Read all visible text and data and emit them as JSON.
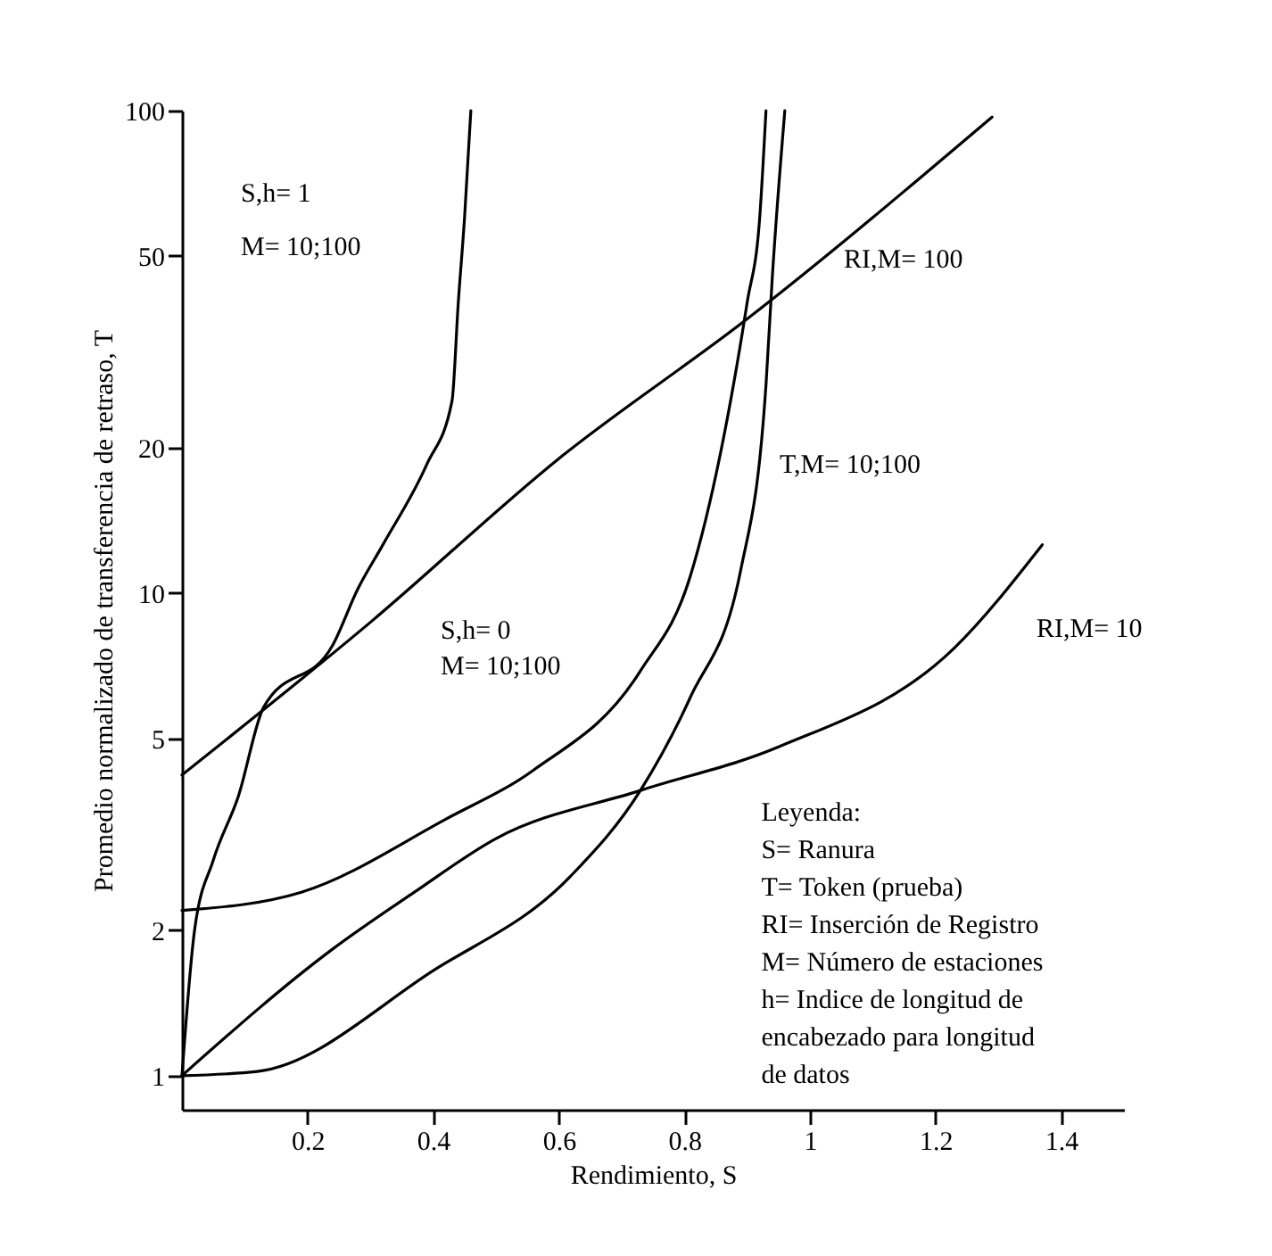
{
  "chart_data": {
    "type": "line",
    "xlabel": "Rendimiento, S",
    "ylabel": "Promedio normalizado de transferencia de retraso, T",
    "log": "y",
    "xlim": [
      0,
      1.5
    ],
    "ylim": [
      0.85,
      100
    ],
    "xticks": [
      0.2,
      0.4,
      0.6,
      0.8,
      1.0,
      1.2,
      1.4
    ],
    "yticks": [
      1,
      2,
      5,
      10,
      20,
      50,
      100
    ],
    "grid": false,
    "marker": "none",
    "line_style": "solid",
    "series": [
      {
        "color": "#000000",
        "x": [
          0,
          0.02,
          0.05,
          0.09,
          0.13,
          0.24,
          0.28,
          0.32,
          0.39,
          0.43,
          0.44,
          0.45,
          0.46
        ],
        "values": [
          1,
          2,
          2.8,
          3.8,
          5.8,
          7.8,
          10.2,
          12.6,
          18.5,
          25,
          40,
          60,
          100
        ]
      },
      {
        "color": "#000000",
        "x": [
          0,
          0.3,
          0.6,
          0.9,
          1.29
        ],
        "values": [
          4.2,
          8.7,
          19,
          37,
          97
        ]
      },
      {
        "color": "#000000",
        "x": [
          0,
          0.19,
          0.42,
          0.56,
          0.73,
          0.81,
          0.9,
          0.92,
          0.93
        ],
        "values": [
          2.2,
          2.4,
          3.4,
          4.3,
          6.9,
          10.9,
          40,
          60,
          100
        ]
      },
      {
        "color": "#000000",
        "x": [
          0,
          0.12,
          0.4,
          0.62,
          0.73,
          0.81,
          0.89,
          0.93,
          0.94,
          0.96
        ],
        "values": [
          1,
          1.02,
          1.65,
          2.6,
          3.9,
          6.1,
          11.2,
          27,
          45,
          100
        ]
      },
      {
        "color": "#000000",
        "x": [
          0,
          0.24,
          0.37,
          0.5,
          0.73,
          0.95,
          1.23,
          1.37
        ],
        "values": [
          1,
          1.83,
          2.4,
          3.1,
          3.9,
          4.8,
          7.7,
          12.6
        ]
      }
    ],
    "annotations": [
      "S,h= 1",
      "M= 10;100",
      "S,h= 0",
      "M= 10;100",
      "T,M= 10;100",
      "RI,M= 100",
      "RI,M= 10",
      "Leyenda:",
      "S= Ranura",
      "T= Token (prueba)",
      "RI= Inserción de Registro",
      "M= Número de estaciones",
      "h= Indice de longitud de",
      "encabezado para longitud",
      "de datos"
    ]
  }
}
